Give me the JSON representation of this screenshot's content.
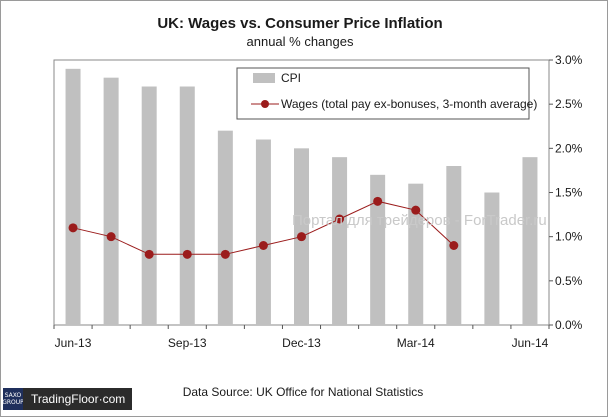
{
  "chart_data": {
    "type": "bar+line",
    "title": "UK: Wages vs. Consumer Price Inflation",
    "subtitle": "annual  % changes",
    "categories": [
      "Jun-13",
      "Jul-13",
      "Aug-13",
      "Sep-13",
      "Oct-13",
      "Nov-13",
      "Dec-13",
      "Jan-14",
      "Feb-14",
      "Mar-14",
      "Apr-14",
      "May-14",
      "Jun-14"
    ],
    "x_tick_labels": [
      "Jun-13",
      "Sep-13",
      "Dec-13",
      "Mar-14",
      "Jun-14"
    ],
    "x_tick_indices": [
      0,
      3,
      6,
      9,
      12
    ],
    "series": [
      {
        "name": "CPI",
        "kind": "bar",
        "color": "#c0c0c0",
        "values": [
          2.9,
          2.8,
          2.7,
          2.7,
          2.2,
          2.1,
          2.0,
          1.9,
          1.7,
          1.6,
          1.8,
          1.5,
          1.9
        ]
      },
      {
        "name": "Wages (total pay ex-bonuses, 3-month average)",
        "kind": "line",
        "color": "#9b1c1c",
        "values": [
          1.1,
          1.0,
          0.8,
          0.8,
          0.8,
          0.9,
          1.0,
          1.2,
          1.4,
          1.3,
          0.9,
          null,
          null
        ]
      }
    ],
    "y_axis_side": "right",
    "ylim": [
      0,
      3.0
    ],
    "y_ticks": [
      0.0,
      0.5,
      1.0,
      1.5,
      2.0,
      2.5,
      3.0
    ],
    "y_tick_labels": [
      "0.0%",
      "0.5%",
      "1.0%",
      "1.5%",
      "2.0%",
      "2.5%",
      "3.0%"
    ],
    "grid": false,
    "legend_placement": "top-center",
    "watermark": "Портал для трейдеров - ForTrader.ru",
    "source": "Data Source: UK Office for National Statistics"
  },
  "branding": {
    "logo_top": "SAXO",
    "logo_bottom": "GROUP",
    "brand_text": "TradingFloor·com"
  }
}
